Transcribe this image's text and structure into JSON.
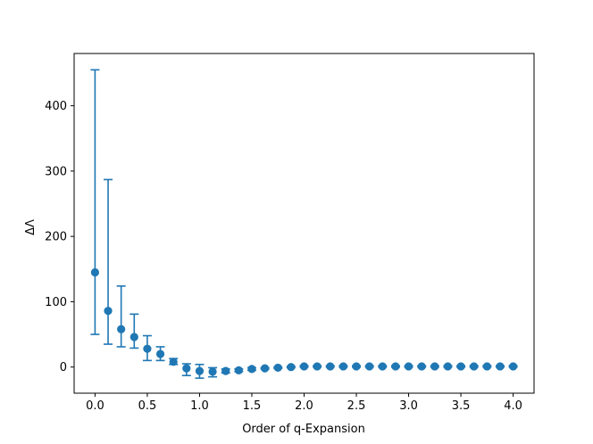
{
  "chart_data": {
    "type": "scatter",
    "title": "",
    "xlabel": "Order of q-Expansion",
    "ylabel": "ΔΛ",
    "xlim": [
      -0.2,
      4.2
    ],
    "ylim": [
      -40,
      480
    ],
    "xticks": [
      0.0,
      0.5,
      1.0,
      1.5,
      2.0,
      2.5,
      3.0,
      3.5,
      4.0
    ],
    "xtick_labels": [
      "0.0",
      "0.5",
      "1.0",
      "1.5",
      "2.0",
      "2.5",
      "3.0",
      "3.5",
      "4.0"
    ],
    "yticks": [
      0,
      100,
      200,
      300,
      400
    ],
    "ytick_labels": [
      "0",
      "100",
      "200",
      "300",
      "400"
    ],
    "grid": false,
    "legend": "none",
    "series": [
      {
        "color": "#1f77b4",
        "marker": "circle",
        "x": [
          0.0,
          0.125,
          0.25,
          0.375,
          0.5,
          0.625,
          0.75,
          0.875,
          1.0,
          1.125,
          1.25,
          1.375,
          1.5,
          1.625,
          1.75,
          1.875,
          2.0,
          2.125,
          2.25,
          2.375,
          2.5,
          2.625,
          2.75,
          2.875,
          3.0,
          3.125,
          3.25,
          3.375,
          3.5,
          3.625,
          3.75,
          3.875,
          4.0
        ],
        "y": [
          145,
          86,
          58,
          46,
          28,
          20,
          8,
          -2,
          -6,
          -7,
          -6,
          -5,
          -3,
          -2,
          -1,
          0,
          1,
          1,
          1,
          1,
          1,
          1,
          1,
          1,
          1,
          1,
          1,
          1,
          1,
          1,
          1,
          1,
          1
        ],
        "y_lower": [
          50,
          35,
          31,
          29,
          10,
          10,
          4,
          -13,
          -17,
          -15,
          -9,
          -7,
          -5,
          -3,
          -2,
          -1,
          0,
          0,
          0,
          0,
          0,
          0,
          0,
          0,
          0,
          0,
          0,
          0,
          0,
          0,
          0,
          0,
          0
        ],
        "y_upper": [
          455,
          287,
          124,
          81,
          48,
          31,
          13,
          5,
          4,
          -1,
          -3,
          -3,
          -1,
          -1,
          0,
          1,
          2,
          2,
          2,
          2,
          2,
          2,
          2,
          2,
          2,
          2,
          2,
          2,
          2,
          2,
          2,
          2,
          2
        ]
      }
    ]
  }
}
